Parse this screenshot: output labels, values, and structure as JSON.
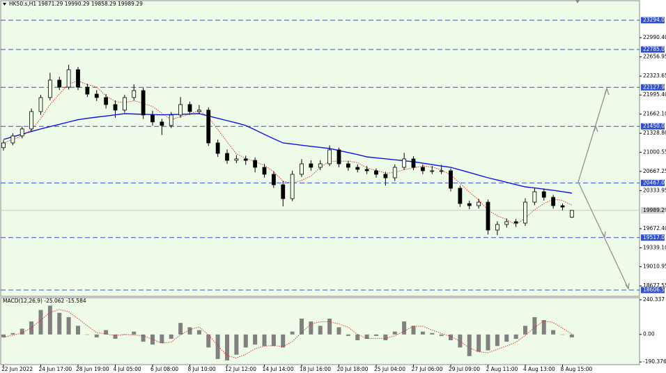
{
  "chart_data": {
    "type": "candlestick",
    "header": "HK50.s,H1  19871.29 19990.29 19858.29 19989.29",
    "indicator_label": "MACD(12,26,9) -25.062 -15.584",
    "background": "#effbe9",
    "candle_color": "#000000",
    "categories": [
      "22 Jun 2022",
      null,
      null,
      null,
      "24 Jun 17:00",
      null,
      null,
      null,
      "28 Jun 19:00",
      null,
      null,
      null,
      "4 Jul 05:00",
      null,
      null,
      null,
      "6 Jul 08:00",
      null,
      null,
      null,
      "8 Jul 10:00",
      null,
      null,
      null,
      "12 Jul 12:00",
      null,
      null,
      null,
      "14 Jul 14:00",
      null,
      null,
      null,
      "18 Jul 16:00",
      null,
      null,
      null,
      "20 Jul 18:00",
      null,
      null,
      null,
      "25 Jul 04:00",
      null,
      null,
      null,
      "27 Jul 06:00",
      null,
      null,
      null,
      "29 Jul 09:00",
      null,
      null,
      null,
      "2 Aug 11:00",
      null,
      null,
      null,
      "4 Aug 13:00",
      null,
      null,
      null,
      "8 Aug 15:00",
      null
    ],
    "candles": [
      [
        21080,
        21210,
        21030,
        21162
      ],
      [
        21162,
        21330,
        21120,
        21284
      ],
      [
        21284,
        21450,
        21240,
        21405
      ],
      [
        21405,
        21760,
        21360,
        21707
      ],
      [
        21707,
        22000,
        21650,
        21950
      ],
      [
        21950,
        22380,
        21900,
        22253
      ],
      [
        22253,
        22310,
        22080,
        22131
      ],
      [
        22131,
        22520,
        22090,
        22434
      ],
      [
        22434,
        22480,
        22080,
        22131
      ],
      [
        22131,
        22190,
        21960,
        22010
      ],
      [
        22010,
        22080,
        21890,
        21950
      ],
      [
        21950,
        22010,
        21760,
        21829
      ],
      [
        21829,
        21900,
        21600,
        21732
      ],
      [
        21732,
        22000,
        21690,
        21950
      ],
      [
        21950,
        22180,
        21900,
        22071
      ],
      [
        22071,
        22120,
        21580,
        21647
      ],
      [
        21647,
        21720,
        21460,
        21526
      ],
      [
        21526,
        21580,
        21300,
        21465
      ],
      [
        21465,
        21700,
        21420,
        21647
      ],
      [
        21647,
        21960,
        21600,
        21829
      ],
      [
        21829,
        21880,
        21650,
        21707
      ],
      [
        21707,
        21820,
        21660,
        21732
      ],
      [
        21732,
        21780,
        21110,
        21162
      ],
      [
        21162,
        21220,
        20920,
        20980
      ],
      [
        20980,
        21050,
        20800,
        20859
      ],
      [
        20859,
        20950,
        20810,
        20884
      ],
      [
        20884,
        20940,
        20780,
        20859
      ],
      [
        20859,
        20910,
        20650,
        20738
      ],
      [
        20738,
        20800,
        20560,
        20617
      ],
      [
        20617,
        20670,
        20380,
        20435
      ],
      [
        20435,
        20500,
        20060,
        20193
      ],
      [
        20193,
        20680,
        20150,
        20617
      ],
      [
        20617,
        20880,
        20570,
        20799
      ],
      [
        20799,
        20860,
        20680,
        20738
      ],
      [
        20738,
        20860,
        20690,
        20799
      ],
      [
        20799,
        21120,
        20760,
        21041
      ],
      [
        21041,
        21080,
        20740,
        20799
      ],
      [
        20799,
        20850,
        20680,
        20738
      ],
      [
        20738,
        20790,
        20650,
        20702
      ],
      [
        20702,
        20760,
        20620,
        20678
      ],
      [
        20678,
        20720,
        20560,
        20617
      ],
      [
        20617,
        20660,
        20420,
        20556
      ],
      [
        20556,
        20790,
        20500,
        20738
      ],
      [
        20738,
        20990,
        20690,
        20884
      ],
      [
        20884,
        20930,
        20690,
        20738
      ],
      [
        20738,
        20790,
        20620,
        20678
      ],
      [
        20678,
        20760,
        20620,
        20678
      ],
      [
        20678,
        20780,
        20620,
        20678
      ],
      [
        20678,
        20720,
        20320,
        20375
      ],
      [
        20375,
        20420,
        20050,
        20108
      ],
      [
        20108,
        20160,
        20010,
        20072
      ],
      [
        20072,
        20190,
        20020,
        20132
      ],
      [
        20132,
        20180,
        19570,
        19648
      ],
      [
        19648,
        19800,
        19560,
        19745
      ],
      [
        19745,
        19850,
        19690,
        19794
      ],
      [
        19794,
        19840,
        19700,
        19769
      ],
      [
        19769,
        20200,
        19720,
        20132
      ],
      [
        20132,
        20380,
        20080,
        20314
      ],
      [
        20314,
        20370,
        20160,
        20217
      ],
      [
        20217,
        20260,
        20020,
        20072
      ],
      [
        20072,
        20110,
        19990,
        20047
      ],
      [
        19871.29,
        19990.29,
        19858.29,
        19989.29
      ]
    ],
    "series": [
      {
        "color": "#1010ee",
        "style": "solid",
        "values": [
          21222,
          21268,
          21314,
          21360,
          21405,
          21445,
          21485,
          21525,
          21565,
          21590,
          21610,
          21630,
          21650,
          21671,
          21665,
          21660,
          21655,
          21650,
          21655,
          21660,
          21665,
          21671,
          21630,
          21590,
          21550,
          21510,
          21465,
          21390,
          21310,
          21235,
          21162,
          21142,
          21122,
          21103,
          21084,
          21065,
          21030,
          20995,
          20960,
          20920,
          20903,
          20886,
          20869,
          20852,
          20835,
          20810,
          20785,
          20760,
          20738,
          20693,
          20648,
          20602,
          20556,
          20517,
          20478,
          20438,
          20399,
          20379,
          20359,
          20339,
          20315,
          20290
        ]
      },
      {
        "color": "#e02020",
        "style": "dotted",
        "values": [
          21162,
          21223,
          21284,
          21390,
          21587,
          21829,
          22010,
          22192,
          22237,
          22177,
          22131,
          21980,
          21880,
          21865,
          21895,
          21850,
          21794,
          21677,
          21565,
          21617,
          21662,
          21729,
          21608,
          21395,
          21183,
          20971,
          20895,
          20835,
          20774,
          20662,
          20496,
          20466,
          20511,
          20587,
          20738,
          20844,
          20844,
          20844,
          20820,
          20729,
          20684,
          20638,
          20647,
          20699,
          20729,
          20759,
          20745,
          20693,
          20602,
          20460,
          20308,
          20172,
          19990,
          19899,
          19830,
          19739,
          19860,
          20002,
          20108,
          20184,
          20163,
          20081
        ]
      }
    ],
    "ylim": [
      18497,
      23524
    ],
    "yticks": [
      {
        "value": 22990.4,
        "label": "22990.40"
      },
      {
        "value": 22656.95,
        "label": "22656.95"
      },
      {
        "value": 22323.65,
        "label": "22323.65"
      },
      {
        "value": 21995.4,
        "label": "21995.40"
      },
      {
        "value": 21662.1,
        "label": "21662.10"
      },
      {
        "value": 21328.8,
        "label": "21328.80"
      },
      {
        "value": 21000.55,
        "label": "21000.55"
      },
      {
        "value": 20667.25,
        "label": "20667.25"
      },
      {
        "value": 20333.95,
        "label": "20333.95"
      },
      {
        "value": 19672.4,
        "label": "19672.40"
      },
      {
        "value": 19339.1,
        "label": "19339.10"
      },
      {
        "value": 19010.95,
        "label": "19010.95"
      },
      {
        "value": 18677.55,
        "label": "18677.55"
      }
    ],
    "levels": [
      {
        "value": 23294,
        "label": "23294.00"
      },
      {
        "value": 22785,
        "label": "22785.00"
      },
      {
        "value": 22127.93,
        "label": "22127.93"
      },
      {
        "value": 21450,
        "label": "21450.00"
      },
      {
        "value": 20467,
        "label": "20467.00"
      },
      {
        "value": 19517,
        "label": "19517.00"
      },
      {
        "value": 18606.58,
        "label": "18606.58"
      }
    ],
    "level_color": "#3050d0",
    "current_price": {
      "value": 19989.29,
      "label": "19989.29"
    },
    "macd": {
      "histogram": [
        -20,
        10,
        40,
        90,
        170,
        200,
        150,
        120,
        60,
        0,
        -20,
        30,
        -30,
        0,
        20,
        -50,
        -70,
        -60,
        -30,
        80,
        50,
        30,
        -90,
        -170,
        -180,
        -140,
        -90,
        -70,
        -80,
        -80,
        -90,
        20,
        110,
        90,
        60,
        110,
        50,
        -10,
        -40,
        -30,
        -10,
        -40,
        20,
        90,
        60,
        20,
        10,
        -10,
        -40,
        -90,
        -150,
        -120,
        -110,
        -80,
        -50,
        -30,
        60,
        120,
        100,
        30,
        0,
        -20
      ],
      "signal": [
        -20,
        -5,
        10,
        47,
        100,
        153,
        173,
        157,
        110,
        60,
        13,
        3,
        -7,
        0,
        -3,
        -10,
        -33,
        -60,
        -53,
        -3,
        33,
        53,
        -3,
        -77,
        -147,
        -163,
        -137,
        -100,
        -80,
        -77,
        -83,
        -50,
        13,
        73,
        87,
        87,
        73,
        50,
        0,
        -27,
        -27,
        -27,
        -10,
        23,
        57,
        57,
        30,
        7,
        -13,
        -47,
        -93,
        -120,
        -127,
        -103,
        -80,
        -53,
        -7,
        50,
        93,
        83,
        43,
        3
      ],
      "histogram_color": "#808080",
      "signal_color": "#e02020",
      "ylim": [
        -218.6,
        254.8
      ],
      "yticks": [
        240.337,
        {
          "value": 0,
          "label": "0.00"
        },
        -190.376
      ]
    }
  }
}
